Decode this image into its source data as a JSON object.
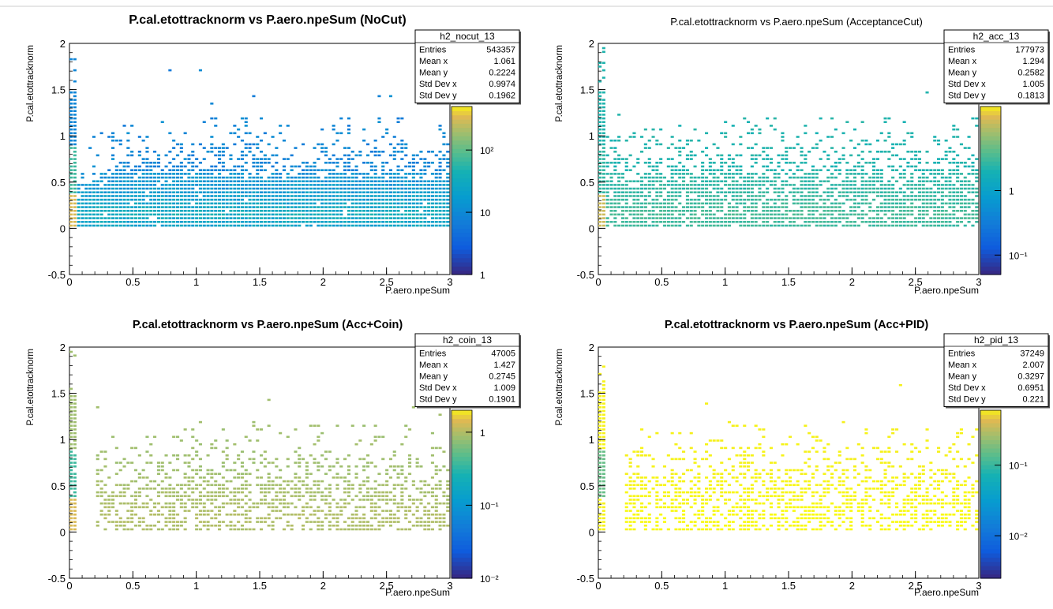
{
  "chart_data": [
    {
      "type": "heatmap",
      "title": "P.cal.etottracknorm vs P.aero.npeSum (NoCut)",
      "xlabel": "P.aero.npeSum",
      "ylabel": "P.cal.etottracknorm",
      "xlim": [
        0,
        3
      ],
      "ylim": [
        -0.5,
        2
      ],
      "x_ticks": [
        "0",
        "0.5",
        "1",
        "1.5",
        "2",
        "2.5",
        "3"
      ],
      "y_ticks": [
        "-0.5",
        "0",
        "0.5",
        "1",
        "1.5",
        "2"
      ],
      "zscale": "log",
      "zlim": [
        1,
        500
      ],
      "z_ticks": [
        {
          "value": 1,
          "label": "1"
        },
        {
          "value": 10,
          "label": "10"
        },
        {
          "value": 100,
          "label": "10²"
        }
      ],
      "dominant_color": "#2a5fd6",
      "stats": {
        "name": "h2_nocut_13",
        "rows": [
          {
            "label": "Entries",
            "value": "543357"
          },
          {
            "label": "Mean x",
            "value": "1.061"
          },
          {
            "label": "Mean y",
            "value": "0.2224"
          },
          {
            "label": "Std Dev x",
            "value": "0.9974"
          },
          {
            "label": "Std Dev y",
            "value": "0.1962"
          }
        ]
      }
    },
    {
      "type": "heatmap",
      "title": "P.cal.etottracknorm vs P.aero.npeSum (AcceptanceCut)",
      "xlabel": "P.aero.npeSum",
      "ylabel": "P.cal.etottracknorm",
      "xlim": [
        0,
        3
      ],
      "ylim": [
        -0.5,
        2
      ],
      "x_ticks": [
        "0",
        "0.5",
        "1",
        "1.5",
        "2",
        "2.5",
        "3"
      ],
      "y_ticks": [
        "-0.5",
        "0",
        "0.5",
        "1",
        "1.5",
        "2"
      ],
      "zscale": "log",
      "zlim": [
        0.05,
        20
      ],
      "z_ticks": [
        {
          "value": 0.1,
          "label": "10⁻¹"
        },
        {
          "value": 1,
          "label": "1"
        }
      ],
      "dominant_color": "#3cb8a0",
      "stats": {
        "name": "h2_acc_13",
        "rows": [
          {
            "label": "Entries",
            "value": "177973"
          },
          {
            "label": "Mean x",
            "value": "1.294"
          },
          {
            "label": "Mean y",
            "value": "0.2582"
          },
          {
            "label": "Std Dev x",
            "value": "1.005"
          },
          {
            "label": "Std Dev y",
            "value": "0.1813"
          }
        ]
      }
    },
    {
      "type": "heatmap",
      "title": "P.cal.etottracknorm vs P.aero.npeSum (Acc+Coin)",
      "xlabel": "P.aero.npeSum",
      "ylabel": "P.cal.etottracknorm",
      "xlim": [
        0,
        3
      ],
      "ylim": [
        -0.5,
        2
      ],
      "x_ticks": [
        "0",
        "0.5",
        "1",
        "1.5",
        "2",
        "2.5",
        "3"
      ],
      "y_ticks": [
        "-0.5",
        "0",
        "0.5",
        "1",
        "1.5",
        "2"
      ],
      "zscale": "log",
      "zlim": [
        0.01,
        2
      ],
      "z_ticks": [
        {
          "value": 0.01,
          "label": "10⁻²"
        },
        {
          "value": 0.1,
          "label": "10⁻¹"
        },
        {
          "value": 1,
          "label": "1"
        }
      ],
      "dominant_color": "#b9bd55",
      "stats": {
        "name": "h2_coin_13",
        "rows": [
          {
            "label": "Entries",
            "value": "47005"
          },
          {
            "label": "Mean x",
            "value": "1.427"
          },
          {
            "label": "Mean y",
            "value": "0.2745"
          },
          {
            "label": "Std Dev x",
            "value": "1.009"
          },
          {
            "label": "Std Dev y",
            "value": "0.1901"
          }
        ]
      }
    },
    {
      "type": "heatmap",
      "title": "P.cal.etottracknorm vs P.aero.npeSum (Acc+PID)",
      "xlabel": "P.aero.npeSum",
      "ylabel": "P.cal.etottracknorm",
      "xlim": [
        0,
        3
      ],
      "ylim": [
        -0.5,
        2
      ],
      "x_ticks": [
        "0",
        "0.5",
        "1",
        "1.5",
        "2",
        "2.5",
        "3"
      ],
      "y_ticks": [
        "-0.5",
        "0",
        "0.5",
        "1",
        "1.5",
        "2"
      ],
      "zscale": "log",
      "zlim": [
        0.0025,
        0.6
      ],
      "z_ticks": [
        {
          "value": 0.01,
          "label": "10⁻²"
        },
        {
          "value": 0.1,
          "label": "10⁻¹"
        }
      ],
      "dominant_color": "#f5e11a",
      "stats": {
        "name": "h2_pid_13",
        "rows": [
          {
            "label": "Entries",
            "value": "37249"
          },
          {
            "label": "Mean x",
            "value": "2.007"
          },
          {
            "label": "Mean y",
            "value": "0.3297"
          },
          {
            "label": "Std Dev x",
            "value": "0.6951"
          },
          {
            "label": "Std Dev y",
            "value": "0.221"
          }
        ]
      }
    }
  ]
}
